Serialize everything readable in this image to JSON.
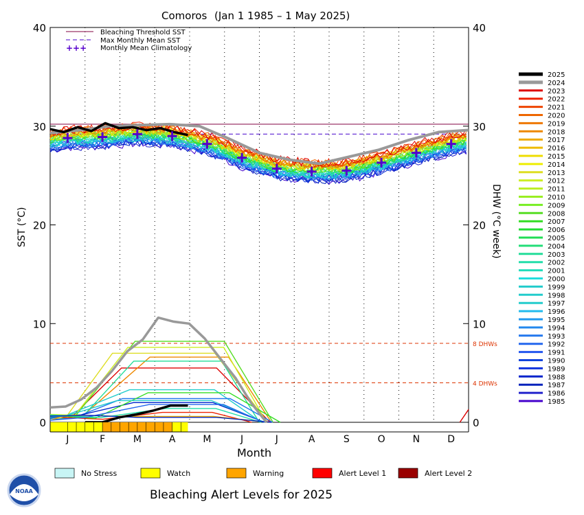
{
  "chart_data": {
    "type": "line",
    "title_region": "Comoros",
    "title_range": "(Jan 1 1985 – 1 May 2025)",
    "ylabel_left": "SST (°C)",
    "ylabel_right": "DHW (°C week)",
    "xlabel": "Month",
    "ylim": [
      0,
      40
    ],
    "y_ticks": [
      0,
      10,
      20,
      30,
      40
    ],
    "x_ticks": [
      "J",
      "F",
      "M",
      "A",
      "M",
      "J",
      "J",
      "A",
      "S",
      "O",
      "N",
      "D"
    ],
    "grid": "dotted vertical month lines",
    "legend_placement": "top-left",
    "legend": {
      "bleaching_threshold": "Bleaching Threshold SST",
      "max_monthly_mean": "Max Monthly Mean SST",
      "climatology": "Monthly Mean Climatology"
    },
    "bleaching_threshold_sst": 30.2,
    "max_monthly_mean_sst": 29.2,
    "dhw_reference": [
      {
        "value": 8,
        "label": "8 DHWs"
      },
      {
        "value": 4,
        "label": "4 DHWs"
      }
    ],
    "climatology": [
      28.8,
      28.9,
      29.2,
      29.0,
      28.2,
      26.8,
      25.7,
      25.4,
      25.5,
      26.3,
      27.3,
      28.2
    ],
    "sst_2025": [
      29.7,
      29.4,
      29.9,
      29.5,
      30.3,
      29.8,
      29.9,
      29.6,
      29.8,
      29.4,
      29.1
    ],
    "sst_2024": [
      29.3,
      29.6,
      30.0,
      30.1,
      30.2,
      30.0,
      28.7,
      27.3,
      26.6,
      26.2,
      26.9,
      27.6,
      28.6,
      29.4,
      29.6
    ],
    "dhw_2025": [
      0,
      0,
      0.5,
      0.8,
      1.2,
      1.7,
      1.7
    ],
    "dhw_2024": [
      1.5,
      1.6,
      2.3,
      3.5,
      5.2,
      7.2,
      8.4,
      10.6,
      10.2,
      10.0,
      8.5,
      6.5,
      4.5,
      2.0,
      0.0
    ],
    "series_legend": [
      "2025",
      "2024",
      "2023",
      "2022",
      "2021",
      "2020",
      "2019",
      "2018",
      "2017",
      "2016",
      "2015",
      "2014",
      "2013",
      "2012",
      "2011",
      "2010",
      "2009",
      "2008",
      "2007",
      "2006",
      "2005",
      "2004",
      "2003",
      "2002",
      "2001",
      "2000",
      "1999",
      "1998",
      "1997",
      "1996",
      "1995",
      "1994",
      "1993",
      "1992",
      "1991",
      "1990",
      "1989",
      "1988",
      "1987",
      "1986",
      "1985"
    ],
    "series_colors": [
      "#000000",
      "#999999",
      "#dd0000",
      "#ee2200",
      "#ee4400",
      "#ee6600",
      "#ee7700",
      "#ee8800",
      "#eeaa00",
      "#eebb00",
      "#eedd00",
      "#eeee00",
      "#dddd22",
      "#ccee22",
      "#bbee22",
      "#99ee22",
      "#77ee22",
      "#55dd22",
      "#33dd22",
      "#22dd33",
      "#22dd55",
      "#22dd77",
      "#22dd99",
      "#22ddaa",
      "#22ddbb",
      "#22dddd",
      "#22cccc",
      "#22cccc",
      "#22cccc",
      "#22bbee",
      "#2299ee",
      "#2288ee",
      "#2277ee",
      "#2266ee",
      "#2255ee",
      "#1144dd",
      "#1133dd",
      "#0022cc",
      "#0022bb",
      "#2222cc",
      "#4400cc"
    ]
  },
  "alert_legend": [
    {
      "label": "No Stress",
      "color": "#c8f5f5"
    },
    {
      "label": "Watch",
      "color": "#ffff00"
    },
    {
      "label": "Warning",
      "color": "#ffa500"
    },
    {
      "label": "Alert Level 1",
      "color": "#ff0000"
    },
    {
      "label": "Alert Level 2",
      "color": "#990000"
    }
  ],
  "footer_title": "Bleaching Alert Levels for 2025",
  "logo_text": "NOAA"
}
